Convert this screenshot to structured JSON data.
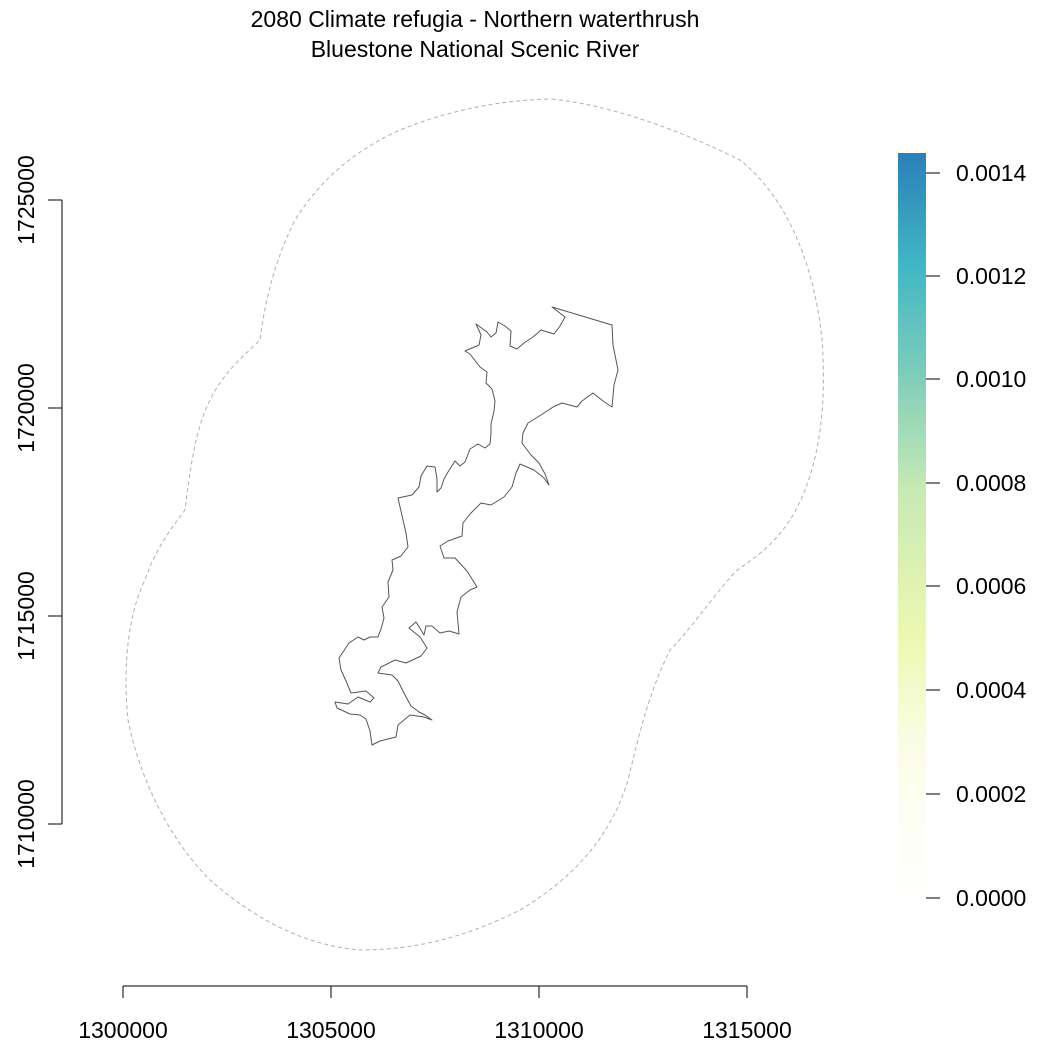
{
  "title": "2080 Climate refugia - Northern waterthrush",
  "subtitle": "Bluestone National Scenic River",
  "x_axis": {
    "ticks": [
      "1300000",
      "1305000",
      "1310000",
      "1315000"
    ]
  },
  "y_axis": {
    "ticks": [
      "1725000",
      "1720000",
      "1715000",
      "1710000"
    ]
  },
  "legend": {
    "labels": [
      "0.0014",
      "0.0012",
      "0.0010",
      "0.0008",
      "0.0006",
      "0.0004",
      "0.0002",
      "0.0000"
    ],
    "colors": [
      "#2c7fb8",
      "#41b6c4",
      "#7fcdbb",
      "#c7e9b4",
      "#edf8b1",
      "#ffffd9",
      "#ffffff"
    ]
  },
  "layers": {
    "buffer": {
      "stroke": "#b0b0b0",
      "style": "dashed"
    },
    "park_boundary": {
      "stroke": "#555555"
    }
  }
}
